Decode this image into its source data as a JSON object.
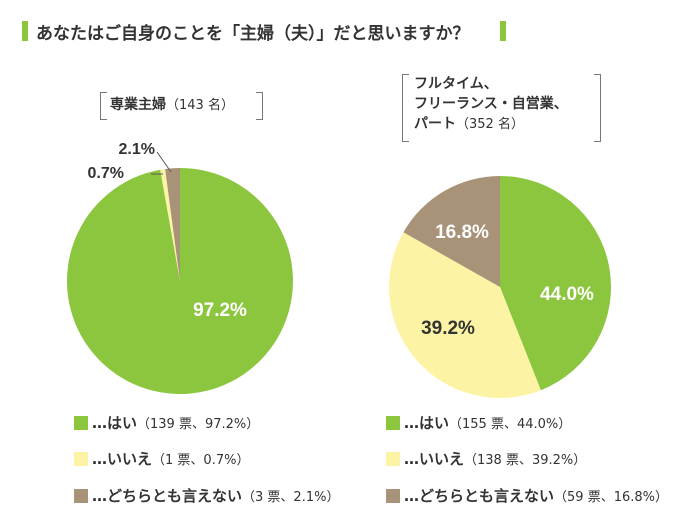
{
  "title": "あなたはご自身のことを「主婦（夫）」だと思いますか？",
  "colors": {
    "yes": "#8cc63f",
    "no": "#fdf3a5",
    "neutral": "#a89378",
    "accent": "#8cc63f"
  },
  "groups": [
    {
      "label_lines": [
        "専業主婦"
      ],
      "count_label": "（143 名）",
      "labels": {
        "yes": "97.2%",
        "no": "0.7%",
        "neutral": "2.1%"
      },
      "legend": [
        {
          "label": "…はい",
          "detail": "（139 票、97.2%）"
        },
        {
          "label": "…いいえ",
          "detail": "（1 票、0.7%）"
        },
        {
          "label": "…どちらとも言えない",
          "detail": "（3 票、2.1%）"
        }
      ]
    },
    {
      "label_lines": [
        "フルタイム、",
        "フリーランス・自営業、",
        "パート"
      ],
      "count_label": "（352 名）",
      "labels": {
        "yes": "44.0%",
        "no": "39.2%",
        "neutral": "16.8%"
      },
      "legend": [
        {
          "label": "…はい",
          "detail": "（155 票、44.0%）"
        },
        {
          "label": "…いいえ",
          "detail": "（138 票、39.2%）"
        },
        {
          "label": "…どちらとも言えない",
          "detail": "（59 票、16.8%）"
        }
      ]
    }
  ],
  "chart_data": [
    {
      "type": "pie",
      "title": "専業主婦（143 名）",
      "categories": [
        "はい",
        "いいえ",
        "どちらとも言えない"
      ],
      "values": [
        97.2,
        0.7,
        2.1
      ],
      "counts": [
        139,
        1,
        3
      ]
    },
    {
      "type": "pie",
      "title": "フルタイム、フリーランス・自営業、パート（352 名）",
      "categories": [
        "はい",
        "いいえ",
        "どちらとも言えない"
      ],
      "values": [
        44.0,
        39.2,
        16.8
      ],
      "counts": [
        155,
        138,
        59
      ]
    }
  ]
}
